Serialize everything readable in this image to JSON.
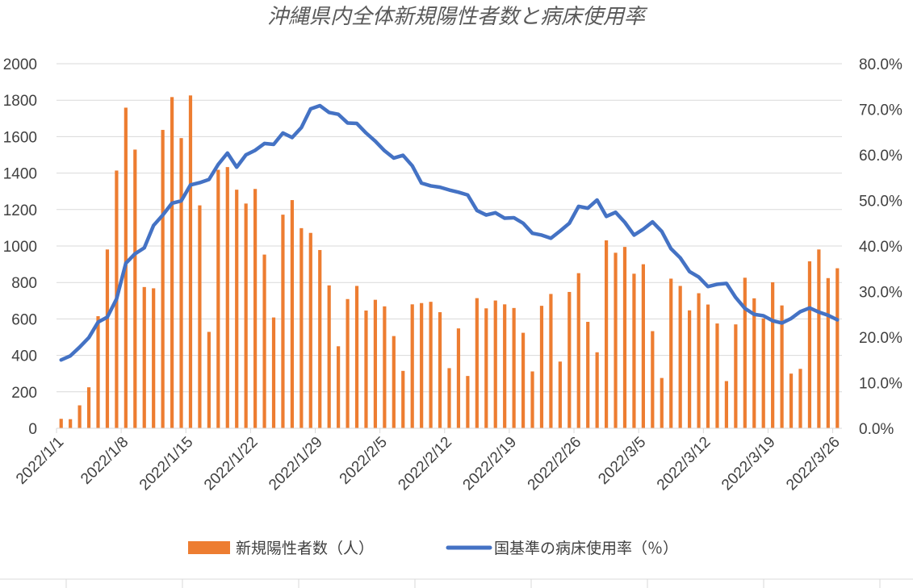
{
  "chart_data": {
    "type": "bar+line",
    "title": "沖縄県内全体新規陽性者数と病床使用率",
    "colors": {
      "bars": "#ED7D31",
      "line": "#4472C4",
      "grid": "#D9D9D9",
      "text": "#404040"
    },
    "x_tick_labels": [
      "2022/1/1",
      "2022/1/8",
      "2022/1/15",
      "2022/1/22",
      "2022/1/29",
      "2022/2/5",
      "2022/2/12",
      "2022/2/19",
      "2022/2/26",
      "2022/3/5",
      "2022/3/12",
      "2022/3/19",
      "2022/3/26"
    ],
    "x_start": "2022/1/1",
    "y_left": {
      "min": 0,
      "max": 2000,
      "step": 200,
      "ticks": [
        "0",
        "200",
        "400",
        "600",
        "800",
        "1000",
        "1200",
        "1400",
        "1600",
        "1800",
        "2000"
      ]
    },
    "y_right": {
      "min": 0,
      "max": 80,
      "step": 10,
      "ticks": [
        "0.0%",
        "10.0%",
        "20.0%",
        "30.0%",
        "40.0%",
        "50.0%",
        "60.0%",
        "70.0%",
        "80.0%"
      ]
    },
    "grid": true,
    "legend_position": "bottom",
    "series": [
      {
        "name": "新規陽性者数（人）",
        "kind": "bar",
        "axis": "left",
        "values": [
          52,
          50,
          126,
          225,
          615,
          981,
          1414,
          1759,
          1529,
          775,
          768,
          1637,
          1817,
          1592,
          1826,
          1223,
          529,
          1418,
          1433,
          1309,
          1233,
          1313,
          953,
          608,
          1172,
          1252,
          1098,
          1072,
          978,
          784,
          450,
          709,
          781,
          646,
          705,
          669,
          506,
          315,
          680,
          687,
          694,
          637,
          330,
          548,
          287,
          714,
          658,
          701,
          680,
          660,
          524,
          312,
          672,
          737,
          366,
          748,
          851,
          584,
          417,
          1031,
          963,
          995,
          848,
          900,
          533,
          276,
          821,
          781,
          647,
          741,
          679,
          575,
          259,
          570,
          826,
          713,
          603,
          801,
          674,
          300,
          326,
          916,
          981,
          824,
          878
        ]
      },
      {
        "name": "国基準の病床使用率（％）",
        "kind": "line",
        "axis": "right",
        "values": [
          15.0,
          15.9,
          17.8,
          19.9,
          23.3,
          24.4,
          28.4,
          36.2,
          38.3,
          39.6,
          44.5,
          46.8,
          49.4,
          49.9,
          53.4,
          53.9,
          54.6,
          57.9,
          60.4,
          57.3,
          60.0,
          61.0,
          62.5,
          62.3,
          64.8,
          63.8,
          66.0,
          70.1,
          70.8,
          69.3,
          68.9,
          67.0,
          66.9,
          64.8,
          63.0,
          60.9,
          59.3,
          59.9,
          57.6,
          53.8,
          53.2,
          52.9,
          52.3,
          51.8,
          51.2,
          47.8,
          46.8,
          47.3,
          46.1,
          46.2,
          45.0,
          42.8,
          42.4,
          41.7,
          43.3,
          45.0,
          48.7,
          48.3,
          50.1,
          46.5,
          47.4,
          45.2,
          42.4,
          43.7,
          45.3,
          43.2,
          39.4,
          37.4,
          34.4,
          33.2,
          31.1,
          31.6,
          31.8,
          28.7,
          26.3,
          25.0,
          24.7,
          23.6,
          23.1,
          24.1,
          25.6,
          26.4,
          25.5,
          24.8,
          23.8
        ]
      }
    ]
  }
}
